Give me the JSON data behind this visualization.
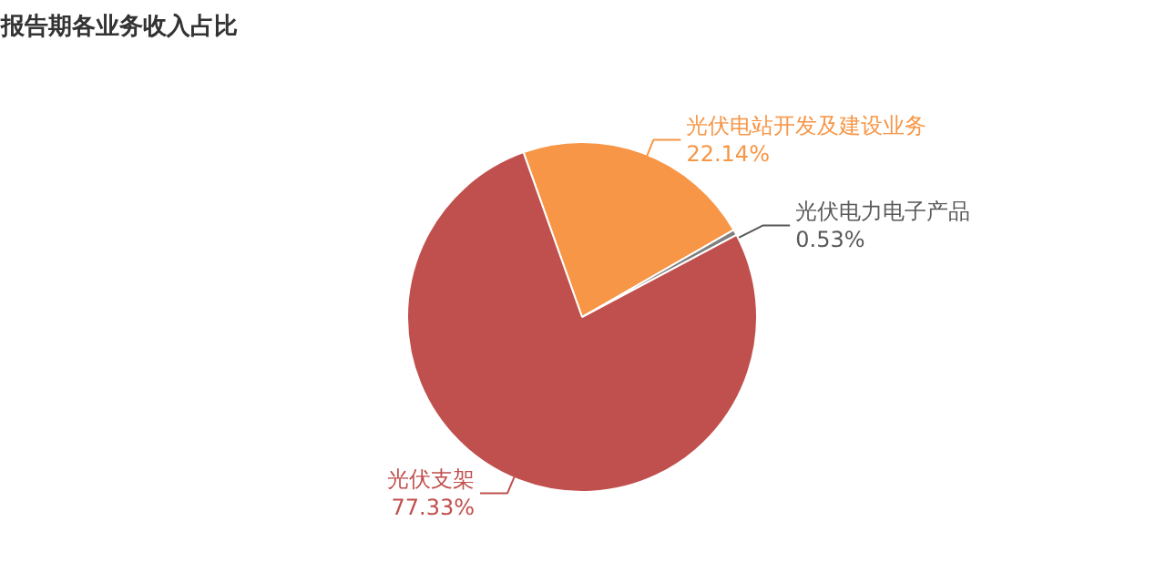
{
  "chart_data": {
    "type": "pie",
    "title": "报告期各业务收入占比",
    "categories": [
      "光伏电站开发及建设业务",
      "光伏电力电子产品",
      "光伏支架"
    ],
    "values": [
      22.14,
      0.53,
      77.33
    ],
    "colors": [
      "#f79646",
      "#7f7f7f",
      "#c0504d"
    ],
    "value_labels": [
      "22.14%",
      "0.53%",
      "77.33%"
    ]
  }
}
